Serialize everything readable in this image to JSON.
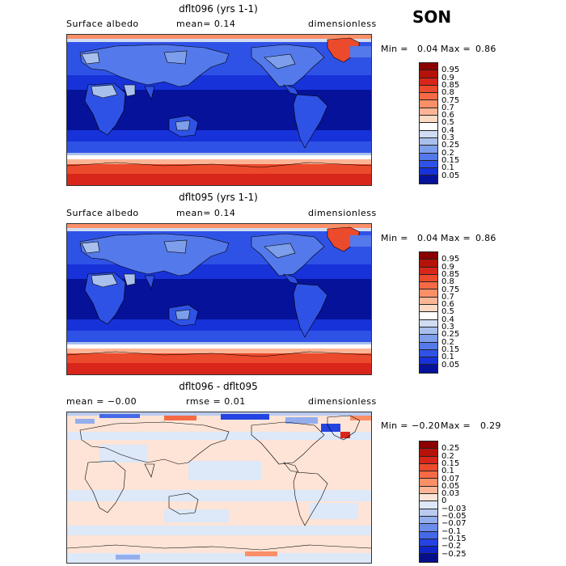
{
  "season": "SON",
  "panels": [
    {
      "title": "dflt096 (yrs 1-1)",
      "left_label": "Surface albedo",
      "center_label": "mean=   0.14",
      "right_label": "dimensionless",
      "min_label": "Min =",
      "min_value": "0.04",
      "max_label": "Max =",
      "max_value": "0.86",
      "colorbar_labels": [
        "0.95",
        "0.9",
        "0.85",
        "0.8",
        "0.75",
        "0.7",
        "0.6",
        "0.5",
        "0.4",
        "0.3",
        "0.25",
        "0.2",
        "0.15",
        "0.1",
        "0.05"
      ],
      "colorbar_colors": [
        "#8b0000",
        "#b5120a",
        "#d8261a",
        "#ec4a2c",
        "#f56a45",
        "#fb8f67",
        "#fdb596",
        "#fdd9c4",
        "#ffffff",
        "#d0dcf2",
        "#a8c0ec",
        "#7d9eea",
        "#5479ea",
        "#2f52e6",
        "#1732d8",
        "#07129a"
      ],
      "map_variant": "a"
    },
    {
      "title": "dflt095 (yrs 1-1)",
      "left_label": "Surface albedo",
      "center_label": "mean=   0.14",
      "right_label": "dimensionless",
      "min_label": "Min =",
      "min_value": "0.04",
      "max_label": "Max =",
      "max_value": "0.86",
      "colorbar_labels": [
        "0.95",
        "0.9",
        "0.85",
        "0.8",
        "0.75",
        "0.7",
        "0.6",
        "0.5",
        "0.4",
        "0.3",
        "0.25",
        "0.2",
        "0.15",
        "0.1",
        "0.05"
      ],
      "colorbar_colors": [
        "#8b0000",
        "#b5120a",
        "#d8261a",
        "#ec4a2c",
        "#f56a45",
        "#fb8f67",
        "#fdb596",
        "#fdd9c4",
        "#ffffff",
        "#d0dcf2",
        "#a8c0ec",
        "#7d9eea",
        "#5479ea",
        "#2f52e6",
        "#1732d8",
        "#07129a"
      ],
      "map_variant": "b"
    },
    {
      "title": "dflt096 - dflt095",
      "left_label": "mean =   −0.00",
      "center_label": "rmse =   0.01",
      "right_label": "dimensionless",
      "min_label": "Min =",
      "min_value": "−0.20",
      "max_label": "Max =",
      "max_value": "0.29",
      "colorbar_labels": [
        "0.25",
        "0.2",
        "0.15",
        "0.1",
        "0.07",
        "0.05",
        "0.03",
        "0",
        "−0.03",
        "−0.05",
        "−0.07",
        "−0.1",
        "−0.15",
        "−0.2",
        "−0.25"
      ],
      "colorbar_colors": [
        "#8b0000",
        "#b5120a",
        "#d8261a",
        "#ec4a2c",
        "#f56a45",
        "#fb8f67",
        "#fdb596",
        "#fde4d6",
        "#dde8f8",
        "#b9cbf0",
        "#94aeed",
        "#6d8deb",
        "#4669e8",
        "#2443e2",
        "#0f25c8",
        "#050f8a"
      ],
      "map_variant": "diff"
    }
  ]
}
